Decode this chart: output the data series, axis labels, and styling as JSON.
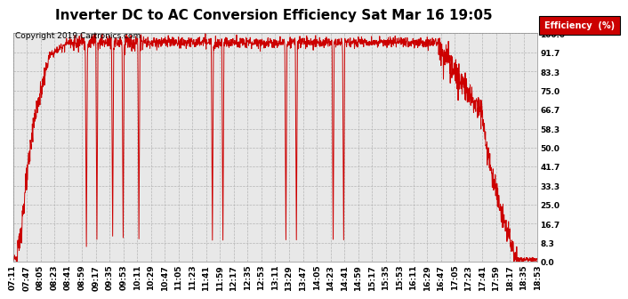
{
  "title": "Inverter DC to AC Conversion Efficiency Sat Mar 16 19:05",
  "copyright": "Copyright 2019 Cartronics.com",
  "legend_label": "Efficiency  (%)",
  "line_color": "#cc0000",
  "bg_color": "#ffffff",
  "plot_bg_color": "#e8e8e8",
  "grid_color": "#b0b0b0",
  "ylim": [
    0.0,
    100.0
  ],
  "yticks": [
    0.0,
    8.3,
    16.7,
    25.0,
    33.3,
    41.7,
    50.0,
    58.3,
    66.7,
    75.0,
    83.3,
    91.7,
    100.0
  ],
  "xtick_labels": [
    "07:11",
    "07:47",
    "08:05",
    "08:23",
    "08:41",
    "08:59",
    "09:17",
    "09:35",
    "09:53",
    "10:11",
    "10:29",
    "10:47",
    "11:05",
    "11:23",
    "11:41",
    "11:59",
    "12:17",
    "12:35",
    "12:53",
    "13:11",
    "13:29",
    "13:47",
    "14:05",
    "14:23",
    "14:41",
    "14:59",
    "15:17",
    "15:35",
    "15:53",
    "16:11",
    "16:29",
    "16:47",
    "17:05",
    "17:23",
    "17:41",
    "17:59",
    "18:17",
    "18:35",
    "18:53"
  ],
  "title_fontsize": 11,
  "tick_fontsize": 6.5,
  "copyright_fontsize": 6.5
}
